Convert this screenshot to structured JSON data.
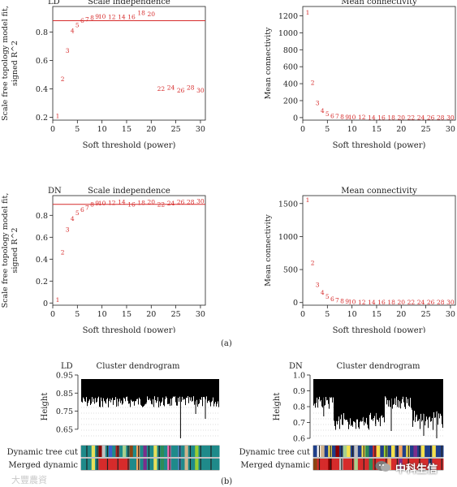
{
  "figure_a_label": "(a)",
  "figure_b_label": "(b)",
  "watermark_left": "大豐農資",
  "watermark_right": "中科生信",
  "colors": {
    "points": "#d62b2b",
    "threshold_line": "#d62b2b",
    "axis": "#222222",
    "dendrogram": "#000000",
    "grid": "#bbbbbb"
  },
  "chart_data": [
    {
      "id": "ld-scale",
      "type": "scatter",
      "group": "LD",
      "title": "Scale independence",
      "xlabel": "Soft threshold (power)",
      "ylabel_lines": [
        "Scale free topology model fit,",
        "signed R^2"
      ],
      "xlim": [
        0,
        31
      ],
      "ylim": [
        0.18,
        0.98
      ],
      "xticks": [
        0,
        5,
        10,
        15,
        20,
        25,
        30
      ],
      "yticks": [
        0.2,
        0.4,
        0.6,
        0.8
      ],
      "hline": 0.88,
      "points": [
        {
          "x": 1,
          "y": 0.21
        },
        {
          "x": 2,
          "y": 0.47
        },
        {
          "x": 3,
          "y": 0.67
        },
        {
          "x": 4,
          "y": 0.81
        },
        {
          "x": 5,
          "y": 0.85
        },
        {
          "x": 6,
          "y": 0.88
        },
        {
          "x": 7,
          "y": 0.89
        },
        {
          "x": 8,
          "y": 0.9
        },
        {
          "x": 9,
          "y": 0.91
        },
        {
          "x": 10,
          "y": 0.91
        },
        {
          "x": 12,
          "y": 0.905
        },
        {
          "x": 14,
          "y": 0.905
        },
        {
          "x": 16,
          "y": 0.905
        },
        {
          "x": 18,
          "y": 0.935
        },
        {
          "x": 20,
          "y": 0.925
        },
        {
          "x": 22,
          "y": 0.4
        },
        {
          "x": 24,
          "y": 0.41
        },
        {
          "x": 26,
          "y": 0.39
        },
        {
          "x": 28,
          "y": 0.41
        },
        {
          "x": 30,
          "y": 0.39
        }
      ]
    },
    {
      "id": "ld-mean",
      "type": "scatter",
      "group": "",
      "title": "Mean connectivity",
      "xlabel": "Soft threshold (power)",
      "ylabel_lines": [
        "Mean connectivity"
      ],
      "xlim": [
        0,
        31
      ],
      "ylim": [
        -30,
        1310
      ],
      "xticks": [
        0,
        5,
        10,
        15,
        20,
        25,
        30
      ],
      "yticks": [
        0,
        200,
        400,
        600,
        800,
        1000,
        1200
      ],
      "hline": null,
      "points": [
        {
          "x": 1,
          "y": 1240
        },
        {
          "x": 2,
          "y": 410
        },
        {
          "x": 3,
          "y": 170
        },
        {
          "x": 4,
          "y": 80
        },
        {
          "x": 5,
          "y": 40
        },
        {
          "x": 6,
          "y": 20
        },
        {
          "x": 7,
          "y": 12
        },
        {
          "x": 8,
          "y": 8
        },
        {
          "x": 9,
          "y": 5
        },
        {
          "x": 10,
          "y": 3
        },
        {
          "x": 12,
          "y": 2
        },
        {
          "x": 14,
          "y": 1
        },
        {
          "x": 16,
          "y": 1
        },
        {
          "x": 18,
          "y": 0
        },
        {
          "x": 20,
          "y": 0
        },
        {
          "x": 22,
          "y": 0
        },
        {
          "x": 24,
          "y": 0
        },
        {
          "x": 26,
          "y": 0
        },
        {
          "x": 28,
          "y": 0
        },
        {
          "x": 30,
          "y": 0
        }
      ]
    },
    {
      "id": "dn-scale",
      "type": "scatter",
      "group": "DN",
      "title": "Scale independence",
      "xlabel": "Soft threshold (power)",
      "ylabel_lines": [
        "Scale free topology model fit,",
        "signed R^2"
      ],
      "xlim": [
        0,
        31
      ],
      "ylim": [
        -0.02,
        0.98
      ],
      "xticks": [
        0,
        5,
        10,
        15,
        20,
        25,
        30
      ],
      "yticks": [
        0.0,
        0.2,
        0.4,
        0.6,
        0.8
      ],
      "hline": 0.9,
      "points": [
        {
          "x": 1,
          "y": 0.03
        },
        {
          "x": 2,
          "y": 0.46
        },
        {
          "x": 3,
          "y": 0.67
        },
        {
          "x": 4,
          "y": 0.77
        },
        {
          "x": 5,
          "y": 0.82
        },
        {
          "x": 6,
          "y": 0.85
        },
        {
          "x": 7,
          "y": 0.87
        },
        {
          "x": 8,
          "y": 0.9
        },
        {
          "x": 9,
          "y": 0.91
        },
        {
          "x": 10,
          "y": 0.91
        },
        {
          "x": 12,
          "y": 0.915
        },
        {
          "x": 14,
          "y": 0.92
        },
        {
          "x": 16,
          "y": 0.9
        },
        {
          "x": 18,
          "y": 0.915
        },
        {
          "x": 20,
          "y": 0.92
        },
        {
          "x": 22,
          "y": 0.9
        },
        {
          "x": 24,
          "y": 0.91
        },
        {
          "x": 26,
          "y": 0.92
        },
        {
          "x": 28,
          "y": 0.92
        },
        {
          "x": 30,
          "y": 0.93
        }
      ]
    },
    {
      "id": "dn-mean",
      "type": "scatter",
      "group": "",
      "title": "Mean connectivity",
      "xlabel": "Soft threshold (power)",
      "ylabel_lines": [
        "Mean connectivity"
      ],
      "xlim": [
        0,
        31
      ],
      "ylim": [
        -40,
        1620
      ],
      "xticks": [
        0,
        5,
        10,
        15,
        20,
        25,
        30
      ],
      "yticks": [
        0,
        500,
        1000,
        1500
      ],
      "hline": null,
      "points": [
        {
          "x": 1,
          "y": 1550
        },
        {
          "x": 2,
          "y": 600
        },
        {
          "x": 3,
          "y": 270
        },
        {
          "x": 4,
          "y": 150
        },
        {
          "x": 5,
          "y": 90
        },
        {
          "x": 6,
          "y": 50
        },
        {
          "x": 7,
          "y": 35
        },
        {
          "x": 8,
          "y": 20
        },
        {
          "x": 9,
          "y": 15
        },
        {
          "x": 10,
          "y": 10
        },
        {
          "x": 12,
          "y": 5
        },
        {
          "x": 14,
          "y": 3
        },
        {
          "x": 16,
          "y": 2
        },
        {
          "x": 18,
          "y": 1
        },
        {
          "x": 20,
          "y": 1
        },
        {
          "x": 22,
          "y": 0
        },
        {
          "x": 24,
          "y": 0
        },
        {
          "x": 26,
          "y": 0
        },
        {
          "x": 28,
          "y": 0
        },
        {
          "x": 30,
          "y": 0
        }
      ]
    },
    {
      "id": "ld-dendro",
      "type": "dendrogram",
      "group": "LD",
      "title": "Cluster dendrogram",
      "ylabel": "Height",
      "ylim": [
        0.6,
        0.95
      ],
      "yticks": [
        0.65,
        0.75,
        0.85,
        0.95
      ],
      "ytick_labels": [
        "0.65",
        "0.75",
        "0.85",
        "0.95"
      ],
      "row_labels": [
        "Dynamic tree cut",
        "Merged dynamic"
      ],
      "color_bar": [
        "#1f8a8a",
        "#1f8a8a",
        "#1f8a8a",
        "#e8e05a",
        "#1f8a8a",
        "#8b0000",
        "#c0c0c0",
        "#1f8a8a",
        "#3a5fcd",
        "#1f8a8a",
        "#b22222",
        "#1f8a8a",
        "#a8d08d",
        "#1f8a8a",
        "#8b4513",
        "#1f8a8a",
        "#f4a460",
        "#1f8a8a",
        "#7b2d8b",
        "#1f8a8a",
        "#1f8a8a",
        "#e8e05a",
        "#1f8a8a",
        "#2e8b57",
        "#1f8a8a",
        "#ff69b4",
        "#1f8a8a",
        "#1f8a8a",
        "#4682b4",
        "#1f8a8a",
        "#d2b48c",
        "#1f8a8a",
        "#1f8a8a",
        "#9acd32",
        "#1f8a8a",
        "#1f8a8a",
        "#1f8a8a",
        "#1f8a8a",
        "#1f8a8a",
        "#1f8a8a"
      ],
      "merged_bar": [
        "#1f8a8a",
        "#1f8a8a",
        "#1f8a8a",
        "#e8e05a",
        "#1f8a8a",
        "#d62b2b",
        "#d62b2b",
        "#d62b2b",
        "#d62b2b",
        "#d62b2b",
        "#d62b2b",
        "#d62b2b",
        "#d62b2b",
        "#d62b2b",
        "#1f8a8a",
        "#1f8a8a",
        "#f4a460",
        "#1f8a8a",
        "#7b2d8b",
        "#1f8a8a",
        "#1f8a8a",
        "#e8e05a",
        "#1f8a8a",
        "#2e8b57",
        "#1f8a8a",
        "#ff69b4",
        "#1f8a8a",
        "#1f8a8a",
        "#4682b4",
        "#1f8a8a",
        "#d2b48c",
        "#1f8a8a",
        "#1f8a8a",
        "#9acd32",
        "#1f8a8a",
        "#1f8a8a",
        "#1f8a8a",
        "#1f8a8a",
        "#1f8a8a",
        "#1f8a8a"
      ]
    },
    {
      "id": "dn-dendro",
      "type": "dendrogram",
      "group": "DN",
      "title": "Cluster dendrogram",
      "ylabel": "Height",
      "ylim": [
        0.6,
        1.0
      ],
      "yticks": [
        0.6,
        0.7,
        0.8,
        0.9,
        1.0
      ],
      "ytick_labels": [
        "0.6",
        "0.7",
        "0.8",
        "0.9",
        "1.0"
      ],
      "row_labels": [
        "Dynamic tree cut",
        "Merged dynamic"
      ],
      "color_bar": [
        "#1f3f8a",
        "#ffffff",
        "#d2b48c",
        "#1f3f8a",
        "#f4e04d",
        "#1f3f8a",
        "#8b0000",
        "#1f3f8a",
        "#a8d08d",
        "#f4e04d",
        "#1f3f8a",
        "#c0c0c0",
        "#1f3f8a",
        "#f4e04d",
        "#2e8b57",
        "#1f3f8a",
        "#d62b2b",
        "#f4e04d",
        "#1f3f8a",
        "#9acd32",
        "#1f3f8a",
        "#f4e04d",
        "#1f3f8a",
        "#f4a460",
        "#1f3f8a",
        "#f4e04d",
        "#1f3f8a",
        "#7b2d8b",
        "#1f3f8a",
        "#f4e04d",
        "#1f3f8a",
        "#1f3f8a",
        "#f4e04d",
        "#1f3f8a",
        "#1f3f8a"
      ],
      "merged_bar": [
        "#8b4513",
        "#d62b2b",
        "#d62b2b",
        "#d62b2b",
        "#8b0000",
        "#d62b2b",
        "#d62b2b",
        "#c0c0c0",
        "#d62b2b",
        "#d62b2b",
        "#d62b2b",
        "#a8d08d",
        "#d62b2b",
        "#d62b2b",
        "#d62b2b",
        "#2e8b57",
        "#d62b2b",
        "#d62b2b",
        "#d62b2b",
        "#d62b2b",
        "#f4a460",
        "#d62b2b",
        "#d62b2b",
        "#7b2d8b",
        "#d62b2b",
        "#d62b2b",
        "#d62b2b",
        "#d62b2b",
        "#d62b2b",
        "#d62b2b",
        "#d62b2b",
        "#1f3f8a",
        "#d62b2b",
        "#d62b2b",
        "#d62b2b"
      ]
    }
  ]
}
